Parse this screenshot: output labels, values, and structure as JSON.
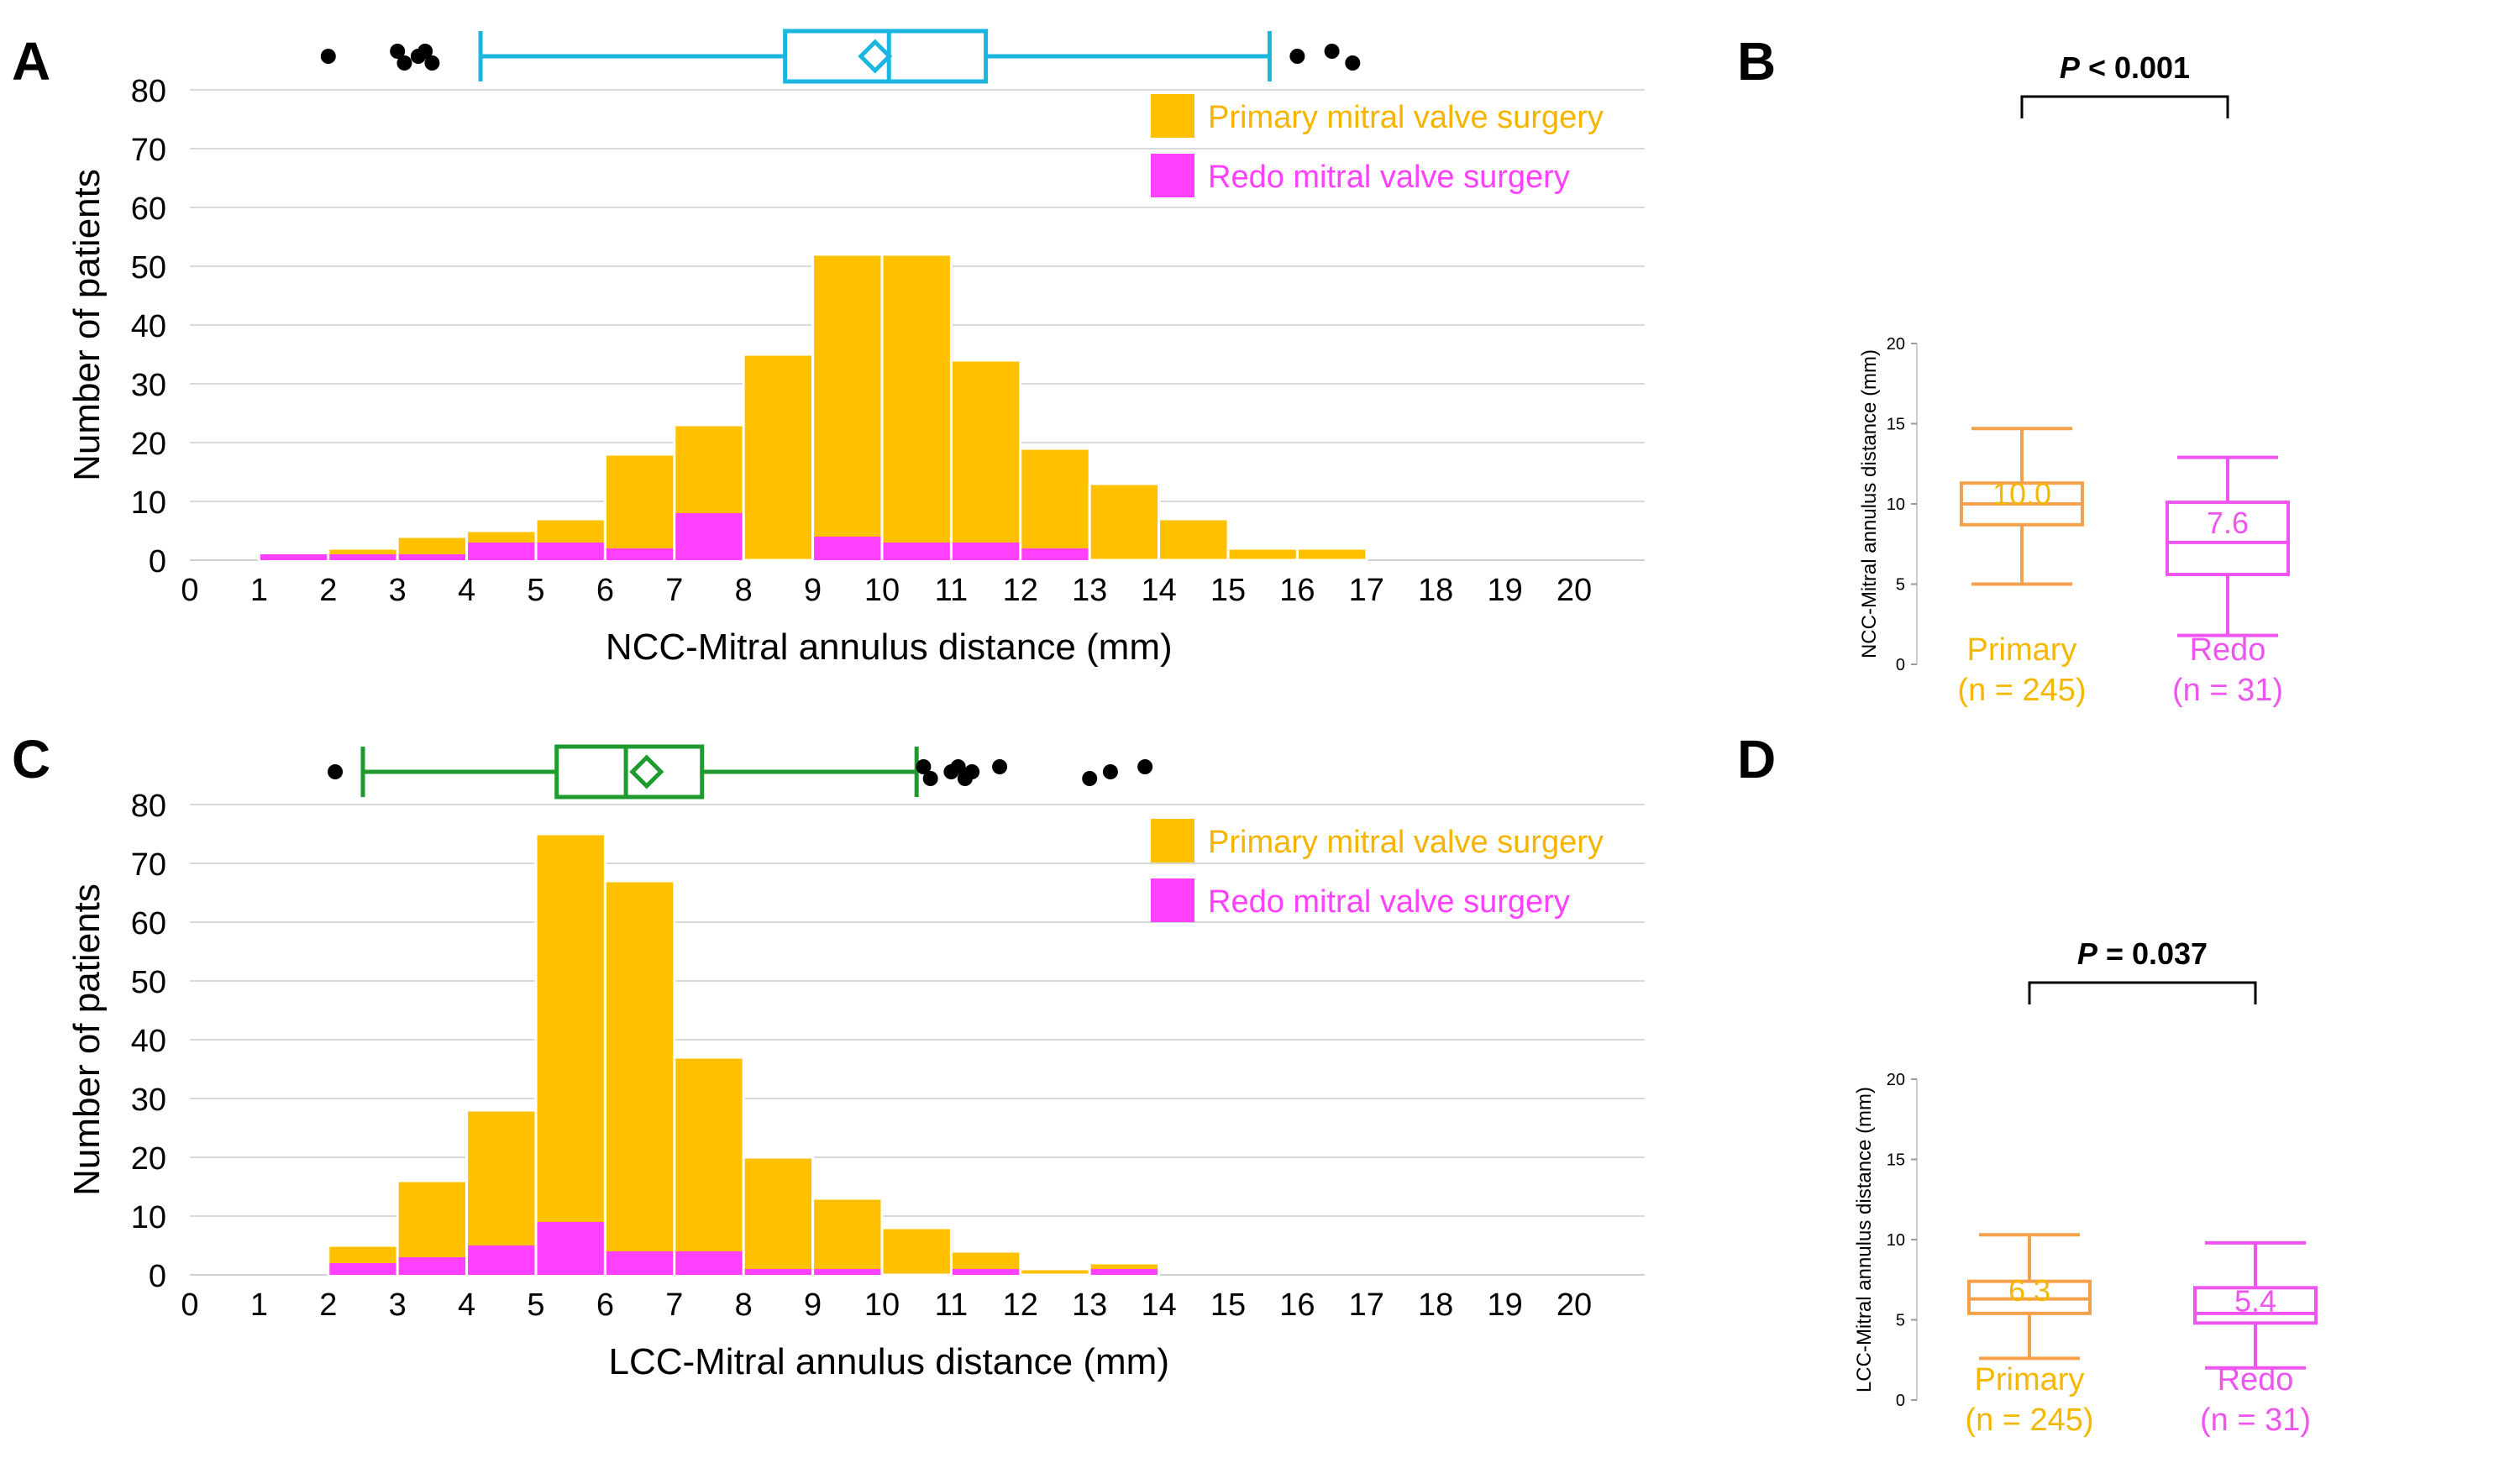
{
  "chart_data": [
    {
      "panel": "A",
      "type": "bar",
      "stacked": true,
      "xlabel": "NCC-Mitral annulus distance (mm)",
      "ylabel": "Number of patients",
      "xlim": [
        0,
        21
      ],
      "ylim": [
        0,
        80
      ],
      "x_ticks": [
        "0",
        "1",
        "2",
        "3",
        "4",
        "5",
        "6",
        "7",
        "8",
        "9",
        "10",
        "11",
        "12",
        "13",
        "14",
        "15",
        "16",
        "17",
        "18",
        "19",
        "20"
      ],
      "y_ticks": [
        "0",
        "10",
        "20",
        "30",
        "40",
        "50",
        "60",
        "70",
        "80"
      ],
      "bins": [
        1,
        2,
        3,
        4,
        5,
        6,
        7,
        8,
        9,
        10,
        11,
        12,
        13,
        14,
        15,
        16
      ],
      "series": [
        {
          "name": "Primary mitral valve surgery",
          "color": "#FFC000",
          "totals": [
            1,
            2,
            4,
            5,
            7,
            18,
            23,
            35,
            52,
            52,
            34,
            19,
            13,
            7,
            2,
            2
          ]
        },
        {
          "name": "Redo mitral valve surgery",
          "color": "#FF40FF",
          "values": [
            1,
            1,
            1,
            3,
            3,
            2,
            8,
            0,
            4,
            3,
            3,
            2,
            0,
            0,
            0,
            0
          ]
        }
      ],
      "boxplot": {
        "color": "#1AB6E0",
        "whisker_low": 4.2,
        "q1": 8.6,
        "median": 10.1,
        "mean": 9.9,
        "q3": 11.5,
        "whisker_high": 15.6,
        "outliers": [
          2.0,
          3.0,
          3.1,
          3.3,
          3.4,
          3.5,
          16.0,
          16.5,
          16.8
        ]
      }
    },
    {
      "panel": "B",
      "type": "boxplot",
      "title": "P < 0.001",
      "p_label": "P",
      "p_value": "< 0.001",
      "ylabel": "NCC-Mitral annulus distance (mm)",
      "ylim": [
        0,
        20
      ],
      "y_ticks": [
        "0",
        "5",
        "10",
        "15",
        "20"
      ],
      "groups": [
        {
          "name": "Primary",
          "n_label": "(n = 245)",
          "color_box": "#F5A04A",
          "color_text": "#F5B800",
          "min": 5.0,
          "q1": 8.7,
          "median": 10.0,
          "q3": 11.3,
          "max": 14.7,
          "median_label": "10.0"
        },
        {
          "name": "Redo",
          "n_label": "(n = 31)",
          "color_box": "#EE55EE",
          "color_text": "#EE55EE",
          "min": 1.8,
          "q1": 5.6,
          "median": 7.6,
          "q3": 10.1,
          "max": 12.9,
          "median_label": "7.6"
        }
      ]
    },
    {
      "panel": "C",
      "type": "bar",
      "stacked": true,
      "xlabel": "LCC-Mitral annulus distance (mm)",
      "ylabel": "Number of patients",
      "xlim": [
        0,
        21
      ],
      "ylim": [
        0,
        80
      ],
      "x_ticks": [
        "0",
        "1",
        "2",
        "3",
        "4",
        "5",
        "6",
        "7",
        "8",
        "9",
        "10",
        "11",
        "12",
        "13",
        "14",
        "15",
        "16",
        "17",
        "18",
        "19",
        "20"
      ],
      "y_ticks": [
        "0",
        "10",
        "20",
        "30",
        "40",
        "50",
        "60",
        "70",
        "80"
      ],
      "bins": [
        2,
        3,
        4,
        5,
        6,
        7,
        8,
        9,
        10,
        11,
        12,
        13
      ],
      "series": [
        {
          "name": "Primary mitral valve surgery",
          "color": "#FFC000",
          "totals": [
            5,
            16,
            28,
            75,
            67,
            37,
            20,
            13,
            8,
            4,
            1,
            2
          ]
        },
        {
          "name": "Redo mitral valve surgery",
          "color": "#FF40FF",
          "values": [
            2,
            3,
            5,
            9,
            4,
            4,
            1,
            1,
            0,
            1,
            0,
            1
          ]
        }
      ],
      "boxplot": {
        "color": "#1E9A2E",
        "whisker_low": 2.5,
        "q1": 5.3,
        "median": 6.3,
        "mean": 6.6,
        "q3": 7.4,
        "whisker_high": 10.5,
        "outliers": [
          2.1,
          10.6,
          10.7,
          11.0,
          11.1,
          11.2,
          11.3,
          11.7,
          13.0,
          13.3,
          13.8
        ]
      }
    },
    {
      "panel": "D",
      "type": "boxplot",
      "title": "P = 0.037",
      "p_label": "P",
      "p_value": "= 0.037",
      "ylabel": "LCC-Mitral annulus distance (mm)",
      "ylim": [
        0,
        20
      ],
      "y_ticks": [
        "0",
        "5",
        "10",
        "15",
        "20"
      ],
      "groups": [
        {
          "name": "Primary",
          "n_label": "(n = 245)",
          "color_box": "#F5A04A",
          "color_text": "#F5B800",
          "min": 2.6,
          "q1": 5.4,
          "median": 6.3,
          "q3": 7.4,
          "max": 10.3,
          "median_label": "6.3"
        },
        {
          "name": "Redo",
          "n_label": "(n = 31)",
          "color_box": "#EE55EE",
          "color_text": "#EE55EE",
          "min": 2.0,
          "q1": 4.8,
          "median": 5.4,
          "q3": 7.0,
          "max": 9.8,
          "median_label": "5.4"
        }
      ]
    }
  ]
}
